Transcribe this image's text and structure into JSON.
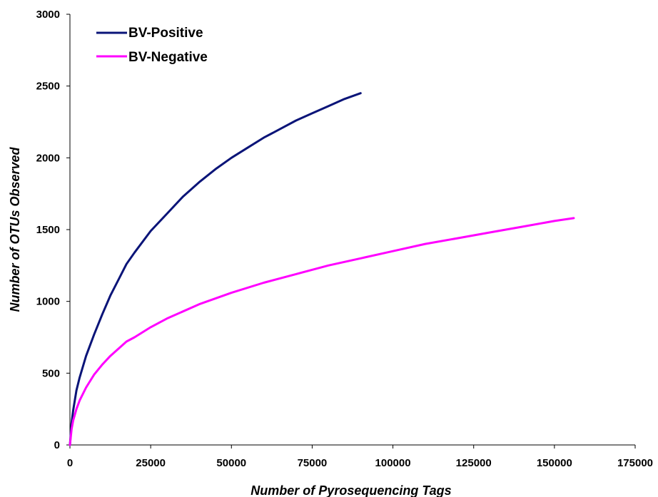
{
  "chart_data": {
    "type": "line",
    "title": "",
    "xlabel": "Number of Pyrosequencing Tags",
    "ylabel": "Number of OTUs Observed",
    "xlim": [
      0,
      175000
    ],
    "ylim": [
      0,
      3000
    ],
    "x_ticks": [
      "0",
      "25000",
      "50000",
      "75000",
      "100000",
      "125000",
      "150000",
      "175000"
    ],
    "y_ticks": [
      "0",
      "500",
      "1000",
      "1500",
      "2000",
      "2500",
      "3000"
    ],
    "grid": false,
    "legend_position": "top-left",
    "series": [
      {
        "name": "BV-Positive",
        "color": "#0a1478",
        "x": [
          0,
          500,
          1000,
          2000,
          3000,
          5000,
          7500,
          10000,
          12500,
          15000,
          17500,
          20000,
          25000,
          30000,
          35000,
          40000,
          45000,
          50000,
          55000,
          60000,
          65000,
          70000,
          75000,
          80000,
          85000,
          90000
        ],
        "y": [
          0,
          150,
          240,
          380,
          470,
          620,
          770,
          910,
          1040,
          1150,
          1260,
          1340,
          1490,
          1610,
          1730,
          1830,
          1920,
          2000,
          2070,
          2140,
          2200,
          2260,
          2310,
          2360,
          2410,
          2450
        ]
      },
      {
        "name": "BV-Negative",
        "color": "#ff00ff",
        "x": [
          0,
          500,
          1000,
          2000,
          3000,
          5000,
          7500,
          10000,
          12500,
          15000,
          17500,
          20000,
          25000,
          30000,
          40000,
          50000,
          60000,
          70000,
          80000,
          90000,
          100000,
          110000,
          120000,
          130000,
          140000,
          150000,
          156000
        ],
        "y": [
          0,
          110,
          170,
          250,
          310,
          400,
          490,
          560,
          620,
          670,
          720,
          750,
          820,
          880,
          980,
          1060,
          1130,
          1190,
          1250,
          1300,
          1350,
          1400,
          1440,
          1480,
          1520,
          1560,
          1580
        ]
      }
    ]
  }
}
